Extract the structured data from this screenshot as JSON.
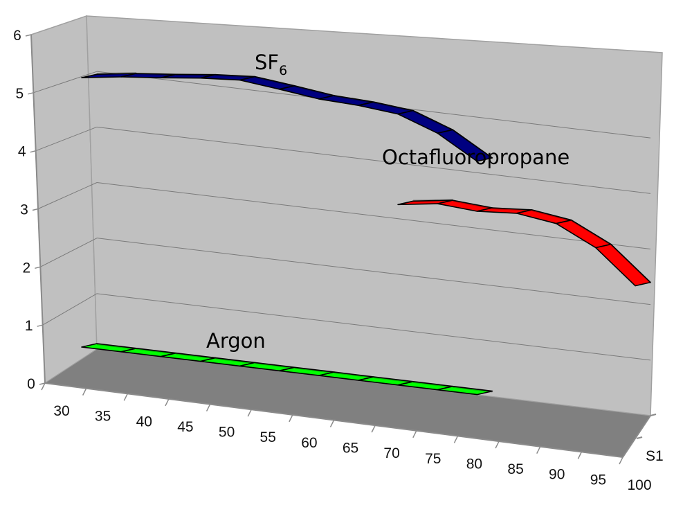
{
  "chart_data": {
    "type": "line",
    "style": "3d-ribbon",
    "xlabel": "",
    "ylabel": "",
    "ylim": [
      0,
      6
    ],
    "y_ticks": [
      "0",
      "1",
      "2",
      "3",
      "4",
      "5",
      "6"
    ],
    "x_ticks": [
      "30",
      "35",
      "40",
      "45",
      "50",
      "55",
      "60",
      "65",
      "70",
      "75",
      "80",
      "85",
      "90",
      "95",
      "100"
    ],
    "depth_label": "S1",
    "grid": true,
    "colors": {
      "wall": "#c0c0c0",
      "floor": "#808080",
      "sf6": "#000080",
      "octafluoropropane": "#ff0000",
      "argon": "#00ff00"
    },
    "series": [
      {
        "name": "SF6",
        "label_main": "SF",
        "label_sub": "6",
        "x": [
          30,
          35,
          40,
          45,
          50,
          55,
          60,
          65,
          70,
          75,
          80
        ],
        "values": [
          4.95,
          5.05,
          5.12,
          5.2,
          5.25,
          5.17,
          5.08,
          5.05,
          4.98,
          4.72,
          4.3
        ]
      },
      {
        "name": "Octafluoropropane",
        "x": [
          70,
          75,
          80,
          85,
          90,
          95,
          100
        ],
        "values": [
          3.35,
          3.45,
          3.4,
          3.45,
          3.35,
          3.0,
          2.4
        ]
      },
      {
        "name": "Argon",
        "x": [
          30,
          35,
          40,
          45,
          50,
          55,
          60,
          65,
          70,
          75,
          80
        ],
        "values": [
          0.1,
          0.1,
          0.1,
          0.1,
          0.1,
          0.1,
          0.1,
          0.1,
          0.1,
          0.1,
          0.1
        ]
      }
    ]
  }
}
